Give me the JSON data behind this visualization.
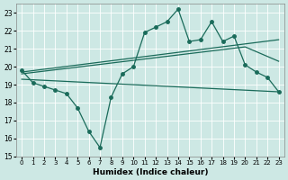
{
  "xlabel": "Humidex (Indice chaleur)",
  "bg_color": "#cde8e4",
  "line_color": "#1a6b5a",
  "grid_color": "#ffffff",
  "xlim": [
    -0.5,
    23.5
  ],
  "ylim": [
    15,
    23.5
  ],
  "yticks": [
    15,
    16,
    17,
    18,
    19,
    20,
    21,
    22,
    23
  ],
  "xticks": [
    0,
    1,
    2,
    3,
    4,
    5,
    6,
    7,
    8,
    9,
    10,
    11,
    12,
    13,
    14,
    15,
    16,
    17,
    18,
    19,
    20,
    21,
    22,
    23
  ],
  "line1_x": [
    0,
    1,
    2,
    3,
    4,
    5,
    6,
    7,
    8,
    9,
    10,
    11,
    12,
    13,
    14,
    15,
    16,
    17,
    18,
    19,
    20,
    21,
    22,
    23
  ],
  "line1_y": [
    19.8,
    19.1,
    18.9,
    18.7,
    18.5,
    17.7,
    16.4,
    15.5,
    18.3,
    19.6,
    20.0,
    21.9,
    22.2,
    22.5,
    23.2,
    21.4,
    21.5,
    22.5,
    21.4,
    21.7,
    20.1,
    19.7,
    19.4,
    18.6
  ],
  "line2_x": [
    0,
    23
  ],
  "line2_y": [
    19.7,
    21.5
  ],
  "line3_x": [
    0,
    20,
    23
  ],
  "line3_y": [
    19.6,
    21.1,
    20.3
  ],
  "line4_x": [
    0,
    23
  ],
  "line4_y": [
    19.3,
    18.6
  ],
  "marker_size": 2.5,
  "linewidth": 0.9
}
